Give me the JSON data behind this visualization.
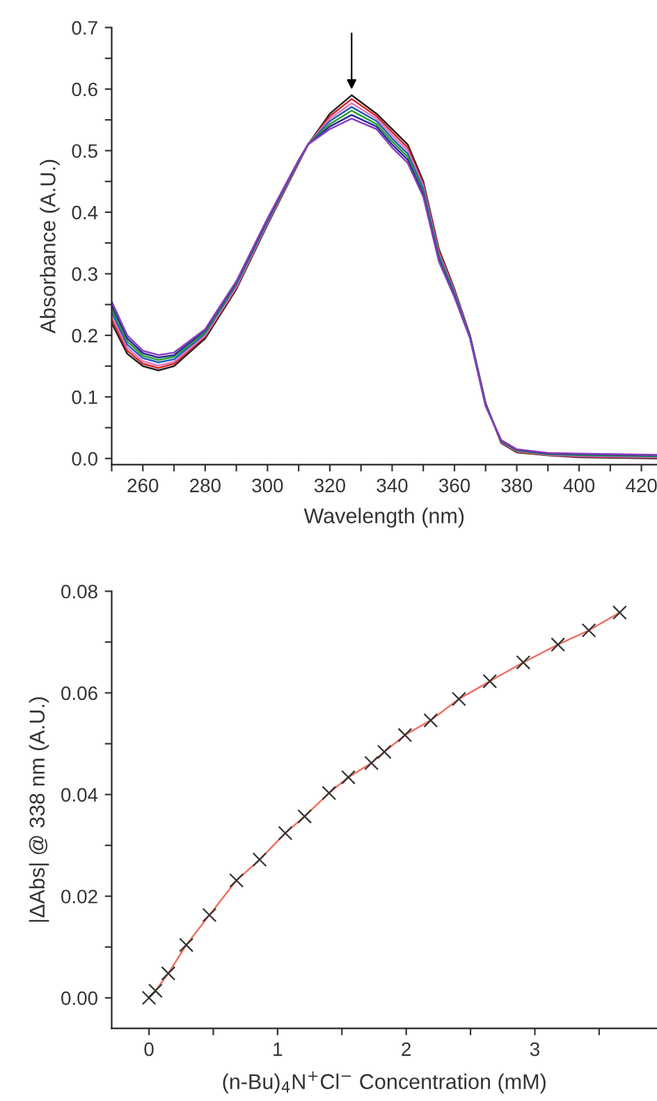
{
  "chart_data": [
    {
      "type": "line",
      "xlabel": "Wavelength (nm)",
      "ylabel": "Absorbance (A.U.)",
      "x": [
        250,
        255,
        260,
        265,
        270,
        280,
        290,
        300,
        310,
        313,
        320,
        327,
        335,
        340,
        345,
        350,
        355,
        360,
        365,
        370,
        375,
        380,
        390,
        400,
        425
      ],
      "series": [
        {
          "color": "#222222",
          "values": [
            0.22,
            0.17,
            0.15,
            0.143,
            0.15,
            0.195,
            0.275,
            0.38,
            0.48,
            0.51,
            0.56,
            0.59,
            0.56,
            0.535,
            0.51,
            0.45,
            0.34,
            0.275,
            0.2,
            0.09,
            0.025,
            0.01,
            0.005,
            0.002,
            0.0
          ]
        },
        {
          "color": "#d62728",
          "values": [
            0.226,
            0.175,
            0.154,
            0.147,
            0.154,
            0.198,
            0.277,
            0.382,
            0.481,
            0.51,
            0.556,
            0.584,
            0.556,
            0.53,
            0.505,
            0.446,
            0.337,
            0.273,
            0.199,
            0.089,
            0.026,
            0.011,
            0.006,
            0.003,
            0.001
          ]
        },
        {
          "color": "#e377c2",
          "values": [
            0.232,
            0.18,
            0.158,
            0.151,
            0.157,
            0.2,
            0.279,
            0.383,
            0.482,
            0.51,
            0.552,
            0.577,
            0.552,
            0.525,
            0.5,
            0.442,
            0.333,
            0.271,
            0.198,
            0.088,
            0.027,
            0.012,
            0.006,
            0.004,
            0.002
          ]
        },
        {
          "color": "#1f5fbf",
          "values": [
            0.238,
            0.185,
            0.163,
            0.156,
            0.161,
            0.203,
            0.282,
            0.385,
            0.483,
            0.51,
            0.548,
            0.571,
            0.548,
            0.52,
            0.495,
            0.438,
            0.33,
            0.269,
            0.198,
            0.088,
            0.028,
            0.013,
            0.007,
            0.005,
            0.003
          ]
        },
        {
          "color": "#2ca02c",
          "values": [
            0.243,
            0.19,
            0.167,
            0.16,
            0.165,
            0.205,
            0.284,
            0.387,
            0.483,
            0.51,
            0.543,
            0.565,
            0.543,
            0.515,
            0.49,
            0.433,
            0.327,
            0.266,
            0.197,
            0.087,
            0.028,
            0.013,
            0.007,
            0.006,
            0.004
          ]
        },
        {
          "color": "#2b2b9a",
          "values": [
            0.249,
            0.195,
            0.171,
            0.164,
            0.168,
            0.208,
            0.286,
            0.388,
            0.484,
            0.51,
            0.539,
            0.558,
            0.539,
            0.51,
            0.485,
            0.429,
            0.323,
            0.264,
            0.196,
            0.086,
            0.029,
            0.014,
            0.008,
            0.007,
            0.005
          ]
        },
        {
          "color": "#8a3fbf",
          "values": [
            0.255,
            0.2,
            0.175,
            0.168,
            0.172,
            0.21,
            0.288,
            0.39,
            0.485,
            0.51,
            0.535,
            0.552,
            0.535,
            0.505,
            0.48,
            0.425,
            0.32,
            0.262,
            0.195,
            0.085,
            0.03,
            0.015,
            0.009,
            0.008,
            0.006
          ]
        }
      ],
      "xlim": [
        250,
        425
      ],
      "ylim": [
        -0.01,
        0.7
      ],
      "xticks": [
        {
          "value": 250,
          "label": null
        },
        260,
        {
          "value": 270,
          "label": null
        },
        280,
        {
          "value": 290,
          "label": null
        },
        300,
        {
          "value": 310,
          "label": null
        },
        320,
        {
          "value": 330,
          "label": null
        },
        340,
        {
          "value": 350,
          "label": null
        },
        360,
        {
          "value": 370,
          "label": null
        },
        380,
        {
          "value": 390,
          "label": null
        },
        400,
        {
          "value": 410,
          "label": null
        },
        420
      ],
      "yticks": [
        {
          "value": 0,
          "label": "0.0"
        },
        {
          "value": 0.05,
          "label": null
        },
        0.1,
        {
          "value": 0.15,
          "label": null
        },
        0.2,
        {
          "value": 0.25,
          "label": null
        },
        0.3,
        {
          "value": 0.35,
          "label": null
        },
        0.4,
        {
          "value": 0.45,
          "label": null
        },
        0.5,
        {
          "value": 0.55,
          "label": null
        },
        0.6,
        {
          "value": 0.65,
          "label": null
        },
        0.7
      ],
      "grid": false,
      "legend": false,
      "marker": "none",
      "line_style": "solid"
    },
    {
      "type": "scatter",
      "xlabel": "(n-Bu)$_{4}$N$^{+}$Cl$^{−}$ Concentration (mM)",
      "ylabel": "|ΔAbs| @ 338 nm (A.U.)",
      "x": [
        0,
        0.05,
        0.15,
        0.29,
        0.47,
        0.68,
        0.86,
        1.06,
        1.21,
        1.4,
        1.55,
        1.73,
        1.83,
        1.99,
        2.19,
        2.41,
        2.65,
        2.91,
        3.18,
        3.42,
        3.66
      ],
      "series": [
        {
          "type": "line",
          "color": "#f07060",
          "x": [
            0.05,
            0.15,
            0.29,
            0.47,
            0.68,
            0.86,
            1.06,
            1.21,
            1.4,
            1.55,
            1.73,
            1.83,
            1.99,
            2.19,
            2.41,
            2.65,
            2.91,
            3.18,
            3.42,
            3.66
          ],
          "values": [
            0.0014,
            0.0048,
            0.0104,
            0.0163,
            0.0231,
            0.0272,
            0.0324,
            0.0357,
            0.0403,
            0.0434,
            0.0462,
            0.0484,
            0.0517,
            0.0546,
            0.0588,
            0.0623,
            0.066,
            0.0695,
            0.0723,
            0.0758
          ]
        },
        {
          "type": "scatter",
          "color": "#333333",
          "marker": "cross",
          "values": [
            0,
            0.0014,
            0.0048,
            0.0104,
            0.0163,
            0.0231,
            0.0272,
            0.0324,
            0.0357,
            0.0403,
            0.0434,
            0.0462,
            0.0484,
            0.0517,
            0.0546,
            0.0588,
            0.0623,
            0.066,
            0.0695,
            0.0723,
            0.0758
          ]
        }
      ],
      "xlim": [
        -0.29,
        3.95
      ],
      "ylim": [
        -0.006,
        0.08
      ],
      "xticks": [
        0,
        {
          "value": 0.5,
          "label": null
        },
        1,
        {
          "value": 1.5,
          "label": null
        },
        2,
        {
          "value": 2.5,
          "label": null
        },
        3,
        {
          "value": 3.5,
          "label": null
        }
      ],
      "yticks": [
        {
          "value": 0,
          "label": "0.00"
        },
        {
          "value": 0.01,
          "label": null
        },
        {
          "value": 0.02,
          "label": "0.02"
        },
        {
          "value": 0.03,
          "label": null
        },
        {
          "value": 0.04,
          "label": "0.04"
        },
        {
          "value": 0.05,
          "label": null
        },
        {
          "value": 0.06,
          "label": "0.06"
        },
        {
          "value": 0.07,
          "label": null
        },
        {
          "value": 0.08,
          "label": "0.08"
        }
      ],
      "grid": false,
      "legend": false
    }
  ]
}
